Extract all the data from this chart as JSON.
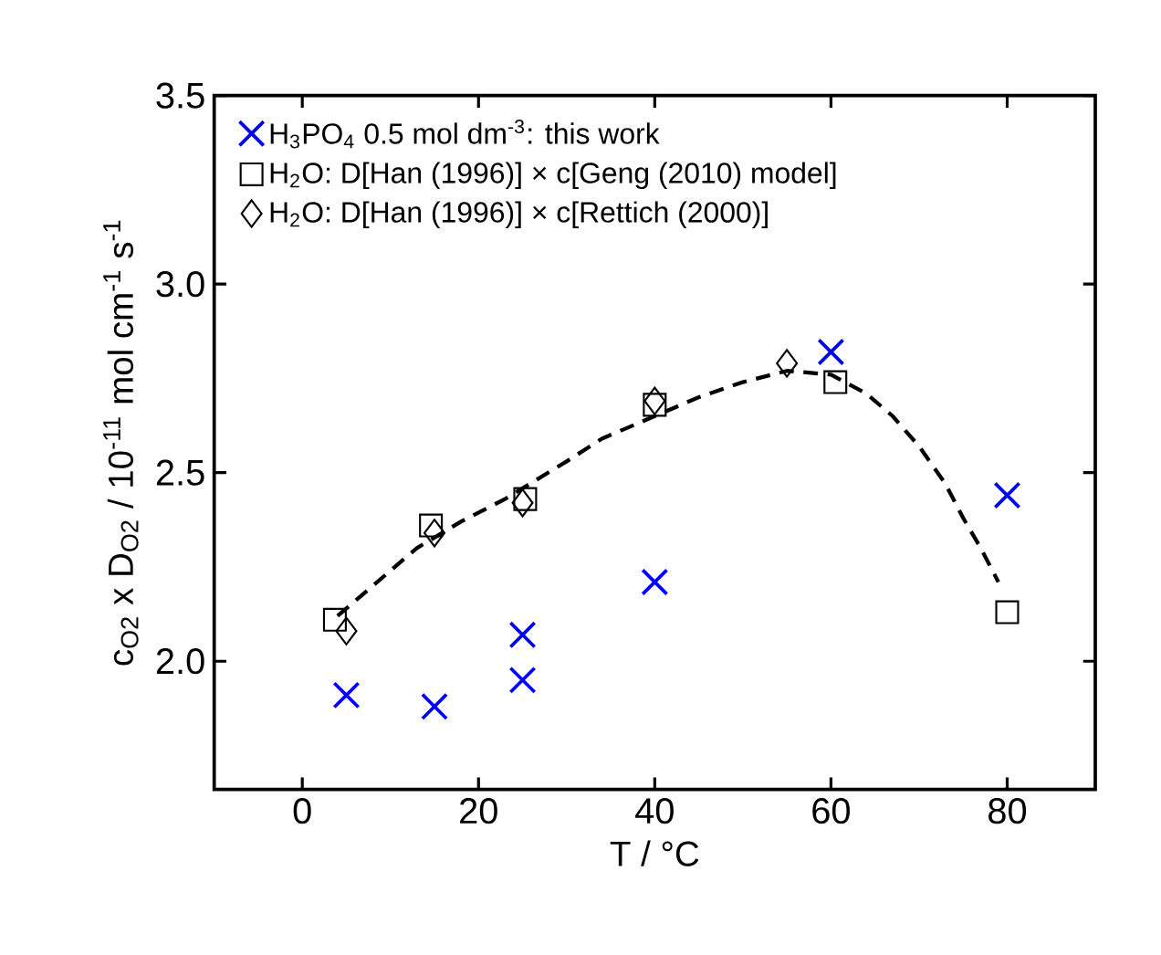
{
  "chart_data": {
    "type": "scatter",
    "xlabel": "T / °C",
    "ylabel": "c$_{O2}$ x D$_{O2}$ / 10$^{-11}$ mol cm$^{-1}$ s$^{-1}$",
    "xlim": [
      -10,
      90
    ],
    "xticks": [
      0,
      20,
      40,
      60,
      80
    ],
    "ylim": [
      1.66,
      3.5
    ],
    "yticks": [
      {
        "value": 2,
        "label": "2.0"
      },
      2.5,
      {
        "value": 3,
        "label": "3.0"
      },
      3.5
    ],
    "legend": "top left",
    "grid": false,
    "series": [
      {
        "name": "H$_{3}$PO$_{4}$ 0.5 mol dm$^{-3}$: this work",
        "marker": "cross",
        "color": "#0000ff",
        "x": [
          5,
          15,
          25,
          25,
          40,
          60,
          80
        ],
        "values": [
          1.91,
          1.88,
          2.07,
          1.95,
          2.21,
          2.82,
          2.44
        ]
      },
      {
        "name": "H$_{2}$O: D[Han (1996)] × c[Geng (2010) model]",
        "marker": "square",
        "color": "#000000",
        "x": [
          3.7,
          14.6,
          25.3,
          40,
          60.5,
          80
        ],
        "values": [
          2.11,
          2.36,
          2.43,
          2.68,
          2.74,
          2.13
        ]
      },
      {
        "name": "H$_{2}$O: D[Han (1996)] × c[Rettich (2000)]",
        "marker": "diamond",
        "color": "#000000",
        "x": [
          5,
          15,
          25,
          40,
          55
        ],
        "values": [
          2.08,
          2.34,
          2.42,
          2.69,
          2.79
        ]
      },
      {
        "type": "line",
        "marker": "none",
        "line_style": "dashed",
        "color": "#000000",
        "x": [
          4,
          8,
          13,
          18,
          23,
          30,
          34,
          40,
          45,
          50,
          55,
          60,
          64,
          67,
          70,
          73,
          75,
          77,
          79
        ],
        "values": [
          2.12,
          2.2,
          2.3,
          2.37,
          2.43,
          2.53,
          2.59,
          2.65,
          2.7,
          2.74,
          2.77,
          2.76,
          2.71,
          2.65,
          2.57,
          2.47,
          2.38,
          2.3,
          2.21
        ]
      }
    ]
  }
}
